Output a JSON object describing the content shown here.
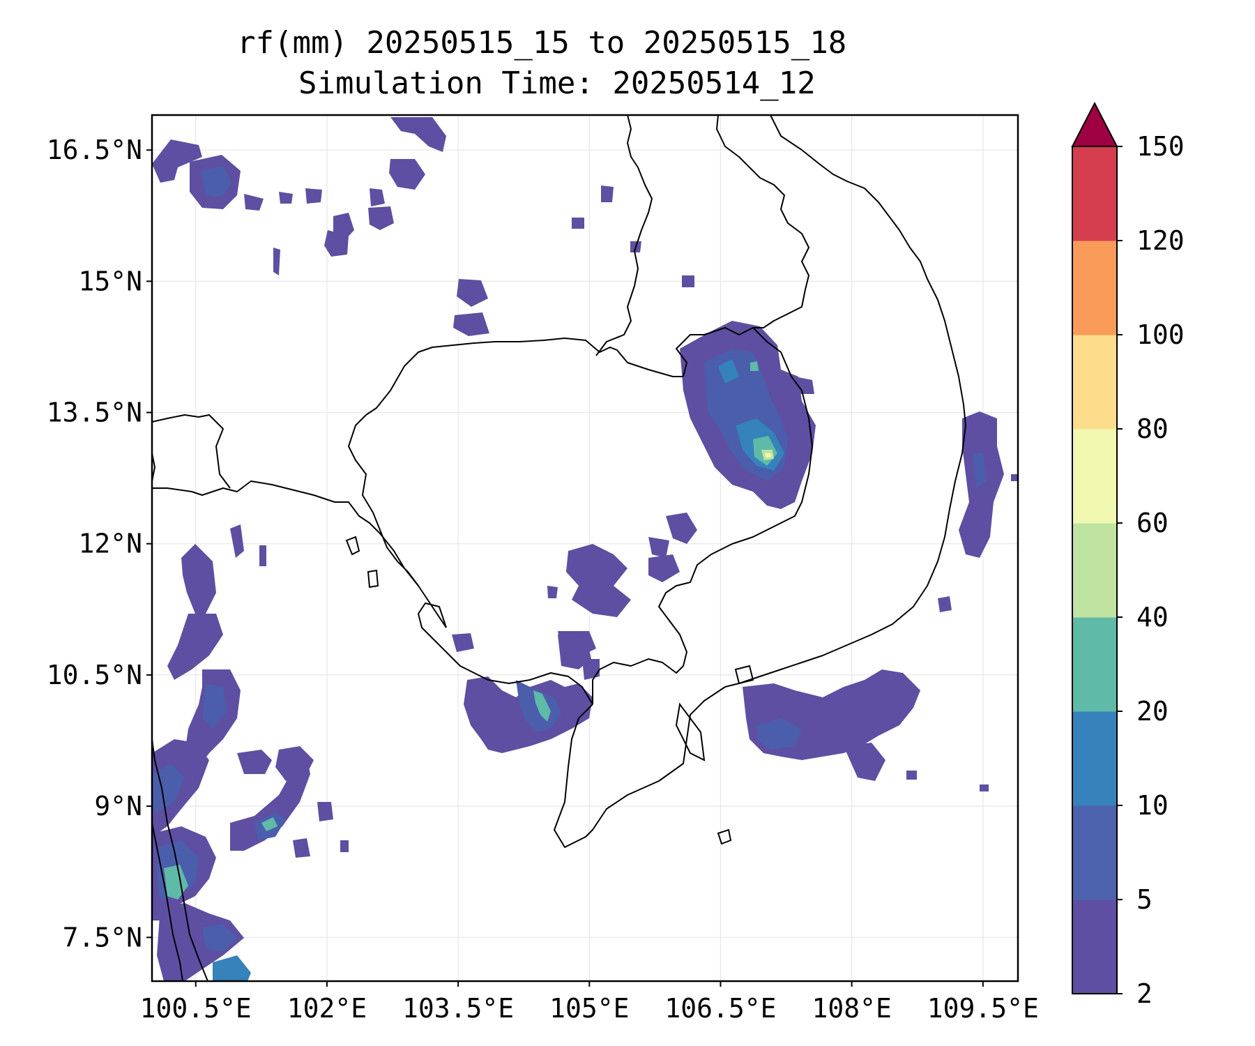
{
  "title": {
    "line1": "rf(mm) 20250515_15 to 20250515_18",
    "line2": "Simulation Time: 20250514_12"
  },
  "map": {
    "lon_range": [
      100.0,
      109.9
    ],
    "lat_range": [
      7.0,
      16.9
    ],
    "x_ticks": [
      {
        "value": 100.5,
        "label": "100.5°E"
      },
      {
        "value": 102.0,
        "label": "102°E"
      },
      {
        "value": 103.5,
        "label": "103.5°E"
      },
      {
        "value": 105.0,
        "label": "105°E"
      },
      {
        "value": 106.5,
        "label": "106.5°E"
      },
      {
        "value": 108.0,
        "label": "108°E"
      },
      {
        "value": 109.5,
        "label": "109.5°E"
      }
    ],
    "y_ticks": [
      {
        "value": 16.5,
        "label": "16.5°N"
      },
      {
        "value": 15.0,
        "label": "15°N"
      },
      {
        "value": 13.5,
        "label": "13.5°N"
      },
      {
        "value": 12.0,
        "label": "12°N"
      },
      {
        "value": 10.5,
        "label": "10.5°N"
      },
      {
        "value": 9.0,
        "label": "9°N"
      },
      {
        "value": 7.5,
        "label": "7.5°N"
      }
    ],
    "grid": true
  },
  "colorbar": {
    "levels": [
      2,
      5,
      10,
      20,
      40,
      60,
      80,
      100,
      120,
      150
    ],
    "labels": [
      "2",
      "5",
      "10",
      "20",
      "40",
      "60",
      "80",
      "100",
      "120",
      "150"
    ],
    "colors": [
      "#5e4fa2",
      "#4c62ad",
      "#3682ba",
      "#5fbaa8",
      "#bfe3a0",
      "#f1f8b0",
      "#fcdd8c",
      "#f99b58",
      "#d53e4f"
    ],
    "extend_color": "#9e0142",
    "extend": "max"
  },
  "rain_colors": {
    "c5": "#4a5eac",
    "c10": "#3682ba",
    "c20": "#5fbaa8",
    "c40": "#bfe3a0",
    "c60": "#f1f8b0"
  }
}
